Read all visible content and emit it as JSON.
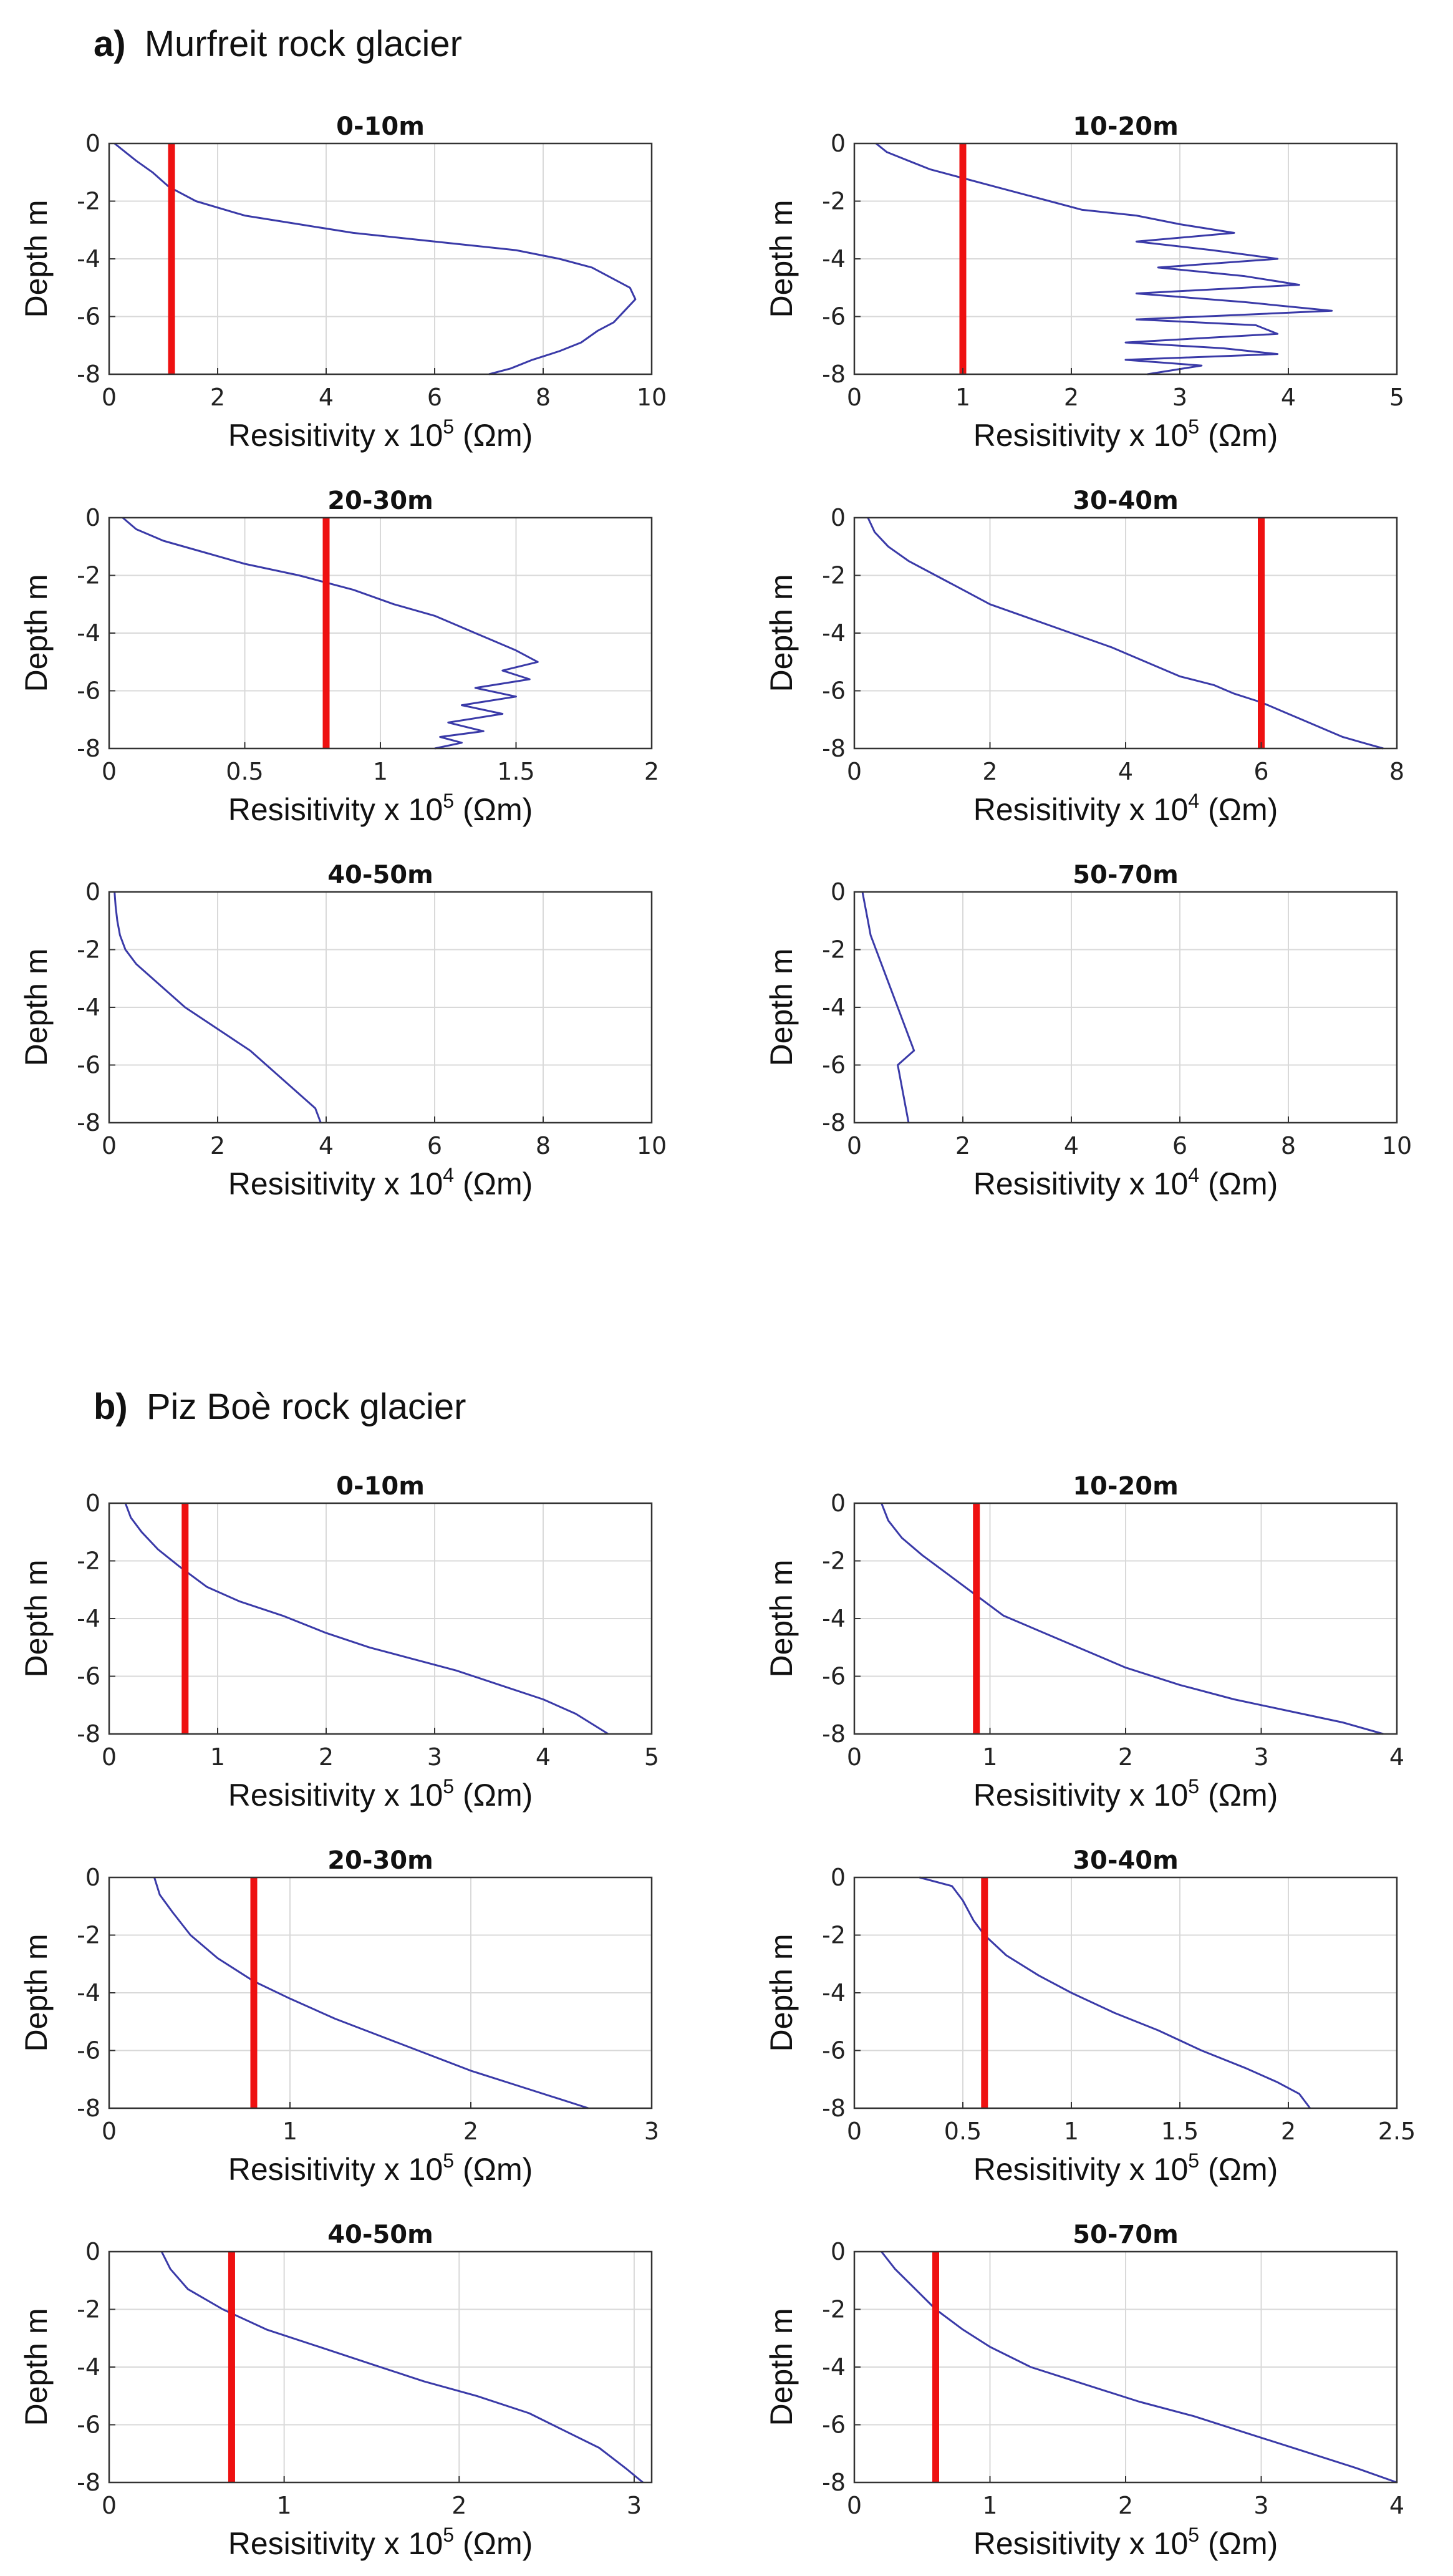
{
  "figure": {
    "sections": [
      {
        "letter": "a)",
        "title": "Murfreit rock glacier"
      },
      {
        "letter": "b)",
        "title": "Piz Boè rock glacier"
      }
    ]
  },
  "colors": {
    "profile": "#3a3aa8",
    "threshold": "#ee1111",
    "grid": "#d9d9d9",
    "frame": "#333333"
  },
  "chart_data": [
    {
      "type": "line",
      "section": "a",
      "title": "0-10m",
      "ylabel": "Depth m",
      "xlabel_prefix": "Resisitivity x 10",
      "xlabel_exp": "5",
      "xlabel_unit": " (Ωm)",
      "xlim": [
        0,
        10
      ],
      "xticks": [
        0,
        2,
        4,
        6,
        8,
        10
      ],
      "ylim": [
        -8,
        0
      ],
      "yticks": [
        0,
        -2,
        -4,
        -6,
        -8
      ],
      "grid": true,
      "threshold": 1.15,
      "series": [
        {
          "x": [
            0.1,
            0.3,
            0.5,
            0.8,
            1.1,
            1.6,
            2.5,
            3.5,
            4.5,
            5.5,
            6.5,
            7.5,
            8.3,
            8.9,
            9.3,
            9.6,
            9.7,
            9.5,
            9.3,
            9.0,
            8.7,
            8.3,
            7.8,
            7.4,
            7.0
          ],
          "y": [
            0,
            -0.3,
            -0.6,
            -1.0,
            -1.5,
            -2.0,
            -2.5,
            -2.8,
            -3.1,
            -3.3,
            -3.5,
            -3.7,
            -4.0,
            -4.3,
            -4.7,
            -5.0,
            -5.4,
            -5.8,
            -6.2,
            -6.5,
            -6.9,
            -7.2,
            -7.5,
            -7.8,
            -8.0
          ]
        }
      ]
    },
    {
      "type": "line",
      "section": "a",
      "title": "10-20m",
      "ylabel": "Depth m",
      "xlabel_prefix": "Resisitivity x 10",
      "xlabel_exp": "5",
      "xlabel_unit": " (Ωm)",
      "xlim": [
        0,
        5
      ],
      "xticks": [
        0,
        1,
        2,
        3,
        4,
        5
      ],
      "ylim": [
        -8,
        0
      ],
      "yticks": [
        0,
        -2,
        -4,
        -6,
        -8
      ],
      "grid": true,
      "threshold": 1.0,
      "series": [
        {
          "x": [
            0.2,
            0.3,
            0.5,
            0.7,
            1.0,
            1.3,
            1.6,
            1.8,
            2.1,
            2.6,
            3.0,
            3.5,
            2.6,
            3.3,
            3.9,
            2.8,
            3.6,
            4.1,
            2.6,
            3.6,
            4.4,
            2.6,
            3.7,
            3.9,
            2.5,
            3.4,
            3.9,
            2.5,
            3.2,
            2.7
          ],
          "y": [
            0,
            -0.3,
            -0.6,
            -0.9,
            -1.2,
            -1.5,
            -1.8,
            -2.0,
            -2.3,
            -2.5,
            -2.8,
            -3.1,
            -3.4,
            -3.7,
            -4.0,
            -4.3,
            -4.6,
            -4.9,
            -5.2,
            -5.5,
            -5.8,
            -6.1,
            -6.3,
            -6.6,
            -6.9,
            -7.1,
            -7.3,
            -7.5,
            -7.7,
            -8.0
          ]
        }
      ]
    },
    {
      "type": "line",
      "section": "a",
      "title": "20-30m",
      "ylabel": "Depth m",
      "xlabel_prefix": "Resisitivity x 10",
      "xlabel_exp": "5",
      "xlabel_unit": " (Ωm)",
      "xlim": [
        0,
        2
      ],
      "xticks": [
        0,
        0.5,
        1,
        1.5,
        2
      ],
      "ylim": [
        -8,
        0
      ],
      "yticks": [
        0,
        -2,
        -4,
        -6,
        -8
      ],
      "grid": true,
      "threshold": 0.8,
      "series": [
        {
          "x": [
            0.05,
            0.1,
            0.2,
            0.35,
            0.5,
            0.7,
            0.9,
            1.05,
            1.2,
            1.3,
            1.4,
            1.5,
            1.58,
            1.45,
            1.55,
            1.35,
            1.5,
            1.3,
            1.45,
            1.25,
            1.38,
            1.22,
            1.3,
            1.2
          ],
          "y": [
            0,
            -0.4,
            -0.8,
            -1.2,
            -1.6,
            -2.0,
            -2.5,
            -3.0,
            -3.4,
            -3.8,
            -4.2,
            -4.6,
            -5.0,
            -5.3,
            -5.6,
            -5.9,
            -6.2,
            -6.5,
            -6.8,
            -7.1,
            -7.4,
            -7.6,
            -7.8,
            -8.0
          ]
        }
      ]
    },
    {
      "type": "line",
      "section": "a",
      "title": "30-40m",
      "ylabel": "Depth m",
      "xlabel_prefix": "Resisitivity x 10",
      "xlabel_exp": "4",
      "xlabel_unit": " (Ωm)",
      "xlim": [
        0,
        8
      ],
      "xticks": [
        0,
        2,
        4,
        6,
        8
      ],
      "ylim": [
        -8,
        0
      ],
      "yticks": [
        0,
        -2,
        -4,
        -6,
        -8
      ],
      "grid": true,
      "threshold": 6.0,
      "series": [
        {
          "x": [
            0.2,
            0.3,
            0.5,
            0.8,
            1.2,
            1.6,
            2.0,
            2.6,
            3.2,
            3.8,
            4.3,
            4.8,
            5.3,
            5.6,
            6.0,
            6.3,
            6.6,
            6.9,
            7.2,
            7.5,
            7.8
          ],
          "y": [
            0,
            -0.5,
            -1.0,
            -1.5,
            -2.0,
            -2.5,
            -3.0,
            -3.5,
            -4.0,
            -4.5,
            -5.0,
            -5.5,
            -5.8,
            -6.1,
            -6.4,
            -6.7,
            -7.0,
            -7.3,
            -7.6,
            -7.8,
            -8.0
          ]
        }
      ]
    },
    {
      "type": "line",
      "section": "a",
      "title": "40-50m",
      "ylabel": "Depth m",
      "xlabel_prefix": "Resisitivity x 10",
      "xlabel_exp": "4",
      "xlabel_unit": " (Ωm)",
      "xlim": [
        0,
        10
      ],
      "xticks": [
        0,
        2,
        4,
        6,
        8,
        10
      ],
      "ylim": [
        -8,
        0
      ],
      "yticks": [
        0,
        -2,
        -4,
        -6,
        -8
      ],
      "grid": true,
      "threshold": null,
      "series": [
        {
          "x": [
            0.1,
            0.12,
            0.15,
            0.2,
            0.3,
            0.5,
            0.8,
            1.1,
            1.4,
            1.8,
            2.2,
            2.6,
            2.9,
            3.2,
            3.5,
            3.8,
            3.9
          ],
          "y": [
            0,
            -0.5,
            -1.0,
            -1.5,
            -2.0,
            -2.5,
            -3.0,
            -3.5,
            -4.0,
            -4.5,
            -5.0,
            -5.5,
            -6.0,
            -6.5,
            -7.0,
            -7.5,
            -8.0
          ]
        }
      ]
    },
    {
      "type": "line",
      "section": "a",
      "title": "50-70m",
      "ylabel": "Depth m",
      "xlabel_prefix": "Resisitivity x 10",
      "xlabel_exp": "4",
      "xlabel_unit": " (Ωm)",
      "xlim": [
        0,
        10
      ],
      "xticks": [
        0,
        2,
        4,
        6,
        8,
        10
      ],
      "ylim": [
        -8,
        0
      ],
      "yticks": [
        0,
        -2,
        -4,
        -6,
        -8
      ],
      "grid": true,
      "threshold": null,
      "series": [
        {
          "x": [
            0.15,
            0.2,
            0.25,
            0.3,
            0.4,
            0.5,
            0.6,
            0.7,
            0.8,
            0.9,
            1.0,
            1.1,
            0.8,
            1.0
          ],
          "y": [
            0,
            -0.5,
            -1.0,
            -1.5,
            -2.0,
            -2.5,
            -3.0,
            -3.5,
            -4.0,
            -4.5,
            -5.0,
            -5.5,
            -6.0,
            -8.0
          ]
        }
      ]
    },
    {
      "type": "line",
      "section": "b",
      "title": "0-10m",
      "ylabel": "Depth m",
      "xlabel_prefix": "Resisitivity x 10",
      "xlabel_exp": "5",
      "xlabel_unit": " (Ωm)",
      "xlim": [
        0,
        5
      ],
      "xticks": [
        0,
        1,
        2,
        3,
        4,
        5
      ],
      "ylim": [
        -8,
        0
      ],
      "yticks": [
        0,
        -2,
        -4,
        -6,
        -8
      ],
      "grid": true,
      "threshold": 0.7,
      "series": [
        {
          "x": [
            0.15,
            0.2,
            0.3,
            0.45,
            0.65,
            0.9,
            1.2,
            1.6,
            2.0,
            2.4,
            2.8,
            3.2,
            3.6,
            4.0,
            4.3,
            4.6
          ],
          "y": [
            0,
            -0.5,
            -1.0,
            -1.6,
            -2.2,
            -2.9,
            -3.4,
            -3.9,
            -4.5,
            -5.0,
            -5.4,
            -5.8,
            -6.3,
            -6.8,
            -7.3,
            -8.0
          ]
        }
      ]
    },
    {
      "type": "line",
      "section": "b",
      "title": "10-20m",
      "ylabel": "Depth m",
      "xlabel_prefix": "Resisitivity x 10",
      "xlabel_exp": "5",
      "xlabel_unit": " (Ωm)",
      "xlim": [
        0,
        4
      ],
      "xticks": [
        0,
        1,
        2,
        3,
        4
      ],
      "ylim": [
        -8,
        0
      ],
      "yticks": [
        0,
        -2,
        -4,
        -6,
        -8
      ],
      "grid": true,
      "threshold": 0.9,
      "series": [
        {
          "x": [
            0.2,
            0.25,
            0.35,
            0.5,
            0.7,
            0.9,
            1.1,
            1.4,
            1.7,
            2.0,
            2.4,
            2.8,
            3.2,
            3.6,
            3.9
          ],
          "y": [
            0,
            -0.6,
            -1.2,
            -1.8,
            -2.5,
            -3.2,
            -3.9,
            -4.5,
            -5.1,
            -5.7,
            -6.3,
            -6.8,
            -7.2,
            -7.6,
            -8.0
          ]
        }
      ]
    },
    {
      "type": "line",
      "section": "b",
      "title": "20-30m",
      "ylabel": "Depth m",
      "xlabel_prefix": "Resisitivity x 10",
      "xlabel_exp": "5",
      "xlabel_unit": " (Ωm)",
      "xlim": [
        0,
        3
      ],
      "xticks": [
        0,
        1,
        2,
        3
      ],
      "ylim": [
        -8,
        0
      ],
      "yticks": [
        0,
        -2,
        -4,
        -6,
        -8
      ],
      "grid": true,
      "threshold": 0.8,
      "series": [
        {
          "x": [
            0.25,
            0.28,
            0.35,
            0.45,
            0.6,
            0.8,
            1.0,
            1.25,
            1.5,
            1.75,
            2.0,
            2.25,
            2.5,
            2.65
          ],
          "y": [
            0,
            -0.6,
            -1.2,
            -2.0,
            -2.8,
            -3.6,
            -4.2,
            -4.9,
            -5.5,
            -6.1,
            -6.7,
            -7.2,
            -7.7,
            -8.0
          ]
        }
      ]
    },
    {
      "type": "line",
      "section": "b",
      "title": "30-40m",
      "ylabel": "Depth m",
      "xlabel_prefix": "Resisitivity x 10",
      "xlabel_exp": "5",
      "xlabel_unit": " (Ωm)",
      "xlim": [
        0,
        2.5
      ],
      "xticks": [
        0,
        0.5,
        1,
        1.5,
        2,
        2.5
      ],
      "ylim": [
        -8,
        0
      ],
      "yticks": [
        0,
        -2,
        -4,
        -6,
        -8
      ],
      "grid": true,
      "threshold": 0.6,
      "series": [
        {
          "x": [
            0.3,
            0.45,
            0.5,
            0.55,
            0.6,
            0.7,
            0.85,
            1.0,
            1.2,
            1.4,
            1.6,
            1.8,
            1.95,
            2.05,
            2.1
          ],
          "y": [
            0,
            -0.3,
            -0.8,
            -1.5,
            -2.0,
            -2.7,
            -3.4,
            -4.0,
            -4.7,
            -5.3,
            -6.0,
            -6.6,
            -7.1,
            -7.5,
            -8.0
          ]
        }
      ]
    },
    {
      "type": "line",
      "section": "b",
      "title": "40-50m",
      "ylabel": "Depth m",
      "xlabel_prefix": "Resisitivity x 10",
      "xlabel_exp": "5",
      "xlabel_unit": " (Ωm)",
      "xlim": [
        0,
        3.1
      ],
      "xticks": [
        0,
        1,
        2,
        3
      ],
      "ylim": [
        -8,
        0
      ],
      "yticks": [
        0,
        -2,
        -4,
        -6,
        -8
      ],
      "grid": true,
      "threshold": 0.7,
      "series": [
        {
          "x": [
            0.3,
            0.35,
            0.45,
            0.65,
            0.9,
            1.2,
            1.5,
            1.8,
            2.1,
            2.4,
            2.6,
            2.8,
            2.95,
            3.05
          ],
          "y": [
            0,
            -0.6,
            -1.3,
            -2.0,
            -2.7,
            -3.3,
            -3.9,
            -4.5,
            -5.0,
            -5.6,
            -6.2,
            -6.8,
            -7.5,
            -8.0
          ]
        }
      ]
    },
    {
      "type": "line",
      "section": "b",
      "title": "50-70m",
      "ylabel": "Depth m",
      "xlabel_prefix": "Resisitivity x 10",
      "xlabel_exp": "5",
      "xlabel_unit": " (Ωm)",
      "xlim": [
        0,
        4
      ],
      "xticks": [
        0,
        1,
        2,
        3,
        4
      ],
      "ylim": [
        -8,
        0
      ],
      "yticks": [
        0,
        -2,
        -4,
        -6,
        -8
      ],
      "grid": true,
      "threshold": 0.6,
      "series": [
        {
          "x": [
            0.2,
            0.3,
            0.45,
            0.6,
            0.8,
            1.0,
            1.3,
            1.7,
            2.1,
            2.5,
            2.9,
            3.3,
            3.7,
            4.0
          ],
          "y": [
            0,
            -0.6,
            -1.3,
            -2.0,
            -2.7,
            -3.3,
            -4.0,
            -4.6,
            -5.2,
            -5.7,
            -6.3,
            -6.9,
            -7.5,
            -8.0
          ]
        }
      ]
    }
  ]
}
